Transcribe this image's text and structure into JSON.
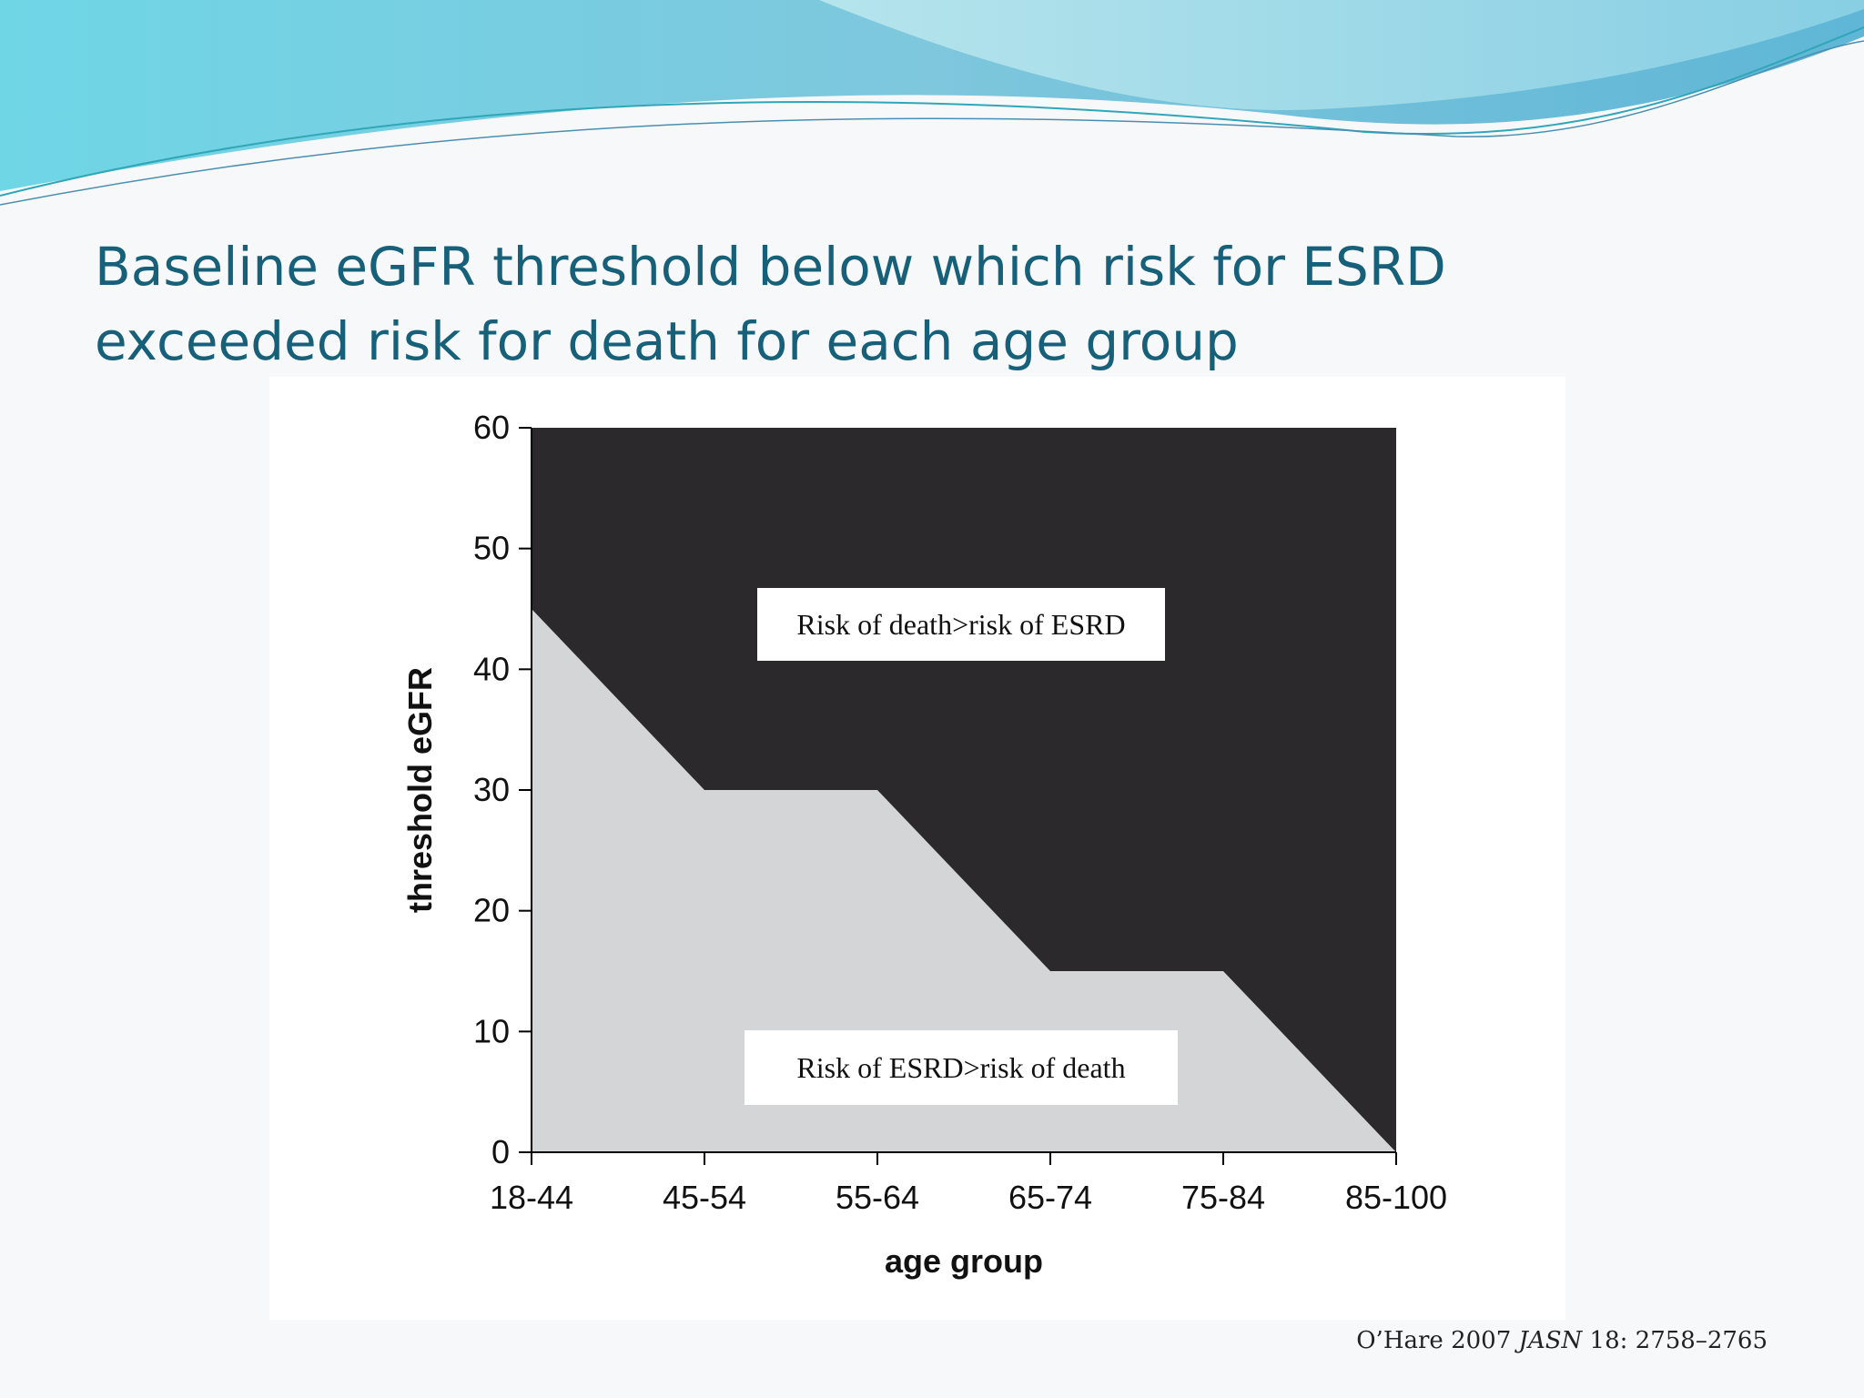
{
  "slide": {
    "title_line1": "Baseline eGFR threshold below which risk for ESRD",
    "title_line2": "exceeded risk for death for each age group",
    "citation": {
      "author_year": "O’Hare 2007",
      "journal": "JASN",
      "ref": "18: 2758–2765"
    }
  },
  "colors": {
    "title": "#17607a",
    "upper_region": "#2b292c",
    "lower_region": "#d4d5d7",
    "label_box": "#ffffff"
  },
  "chart_data": {
    "type": "area",
    "categories": [
      "18-44",
      "45-54",
      "55-64",
      "65-74",
      "75-84",
      "85-100"
    ],
    "values": [
      45,
      30,
      30,
      15,
      15,
      0
    ],
    "xlabel": "age group",
    "ylabel": "threshold eGFR",
    "ylim": [
      0,
      60
    ],
    "yticks": [
      0,
      10,
      20,
      30,
      40,
      50,
      60
    ],
    "grid": false,
    "annotations": [
      {
        "text": "Risk of death>risk of ESRD",
        "region": "above-curve"
      },
      {
        "text": "Risk of ESRD>risk of death",
        "region": "below-curve"
      }
    ]
  }
}
